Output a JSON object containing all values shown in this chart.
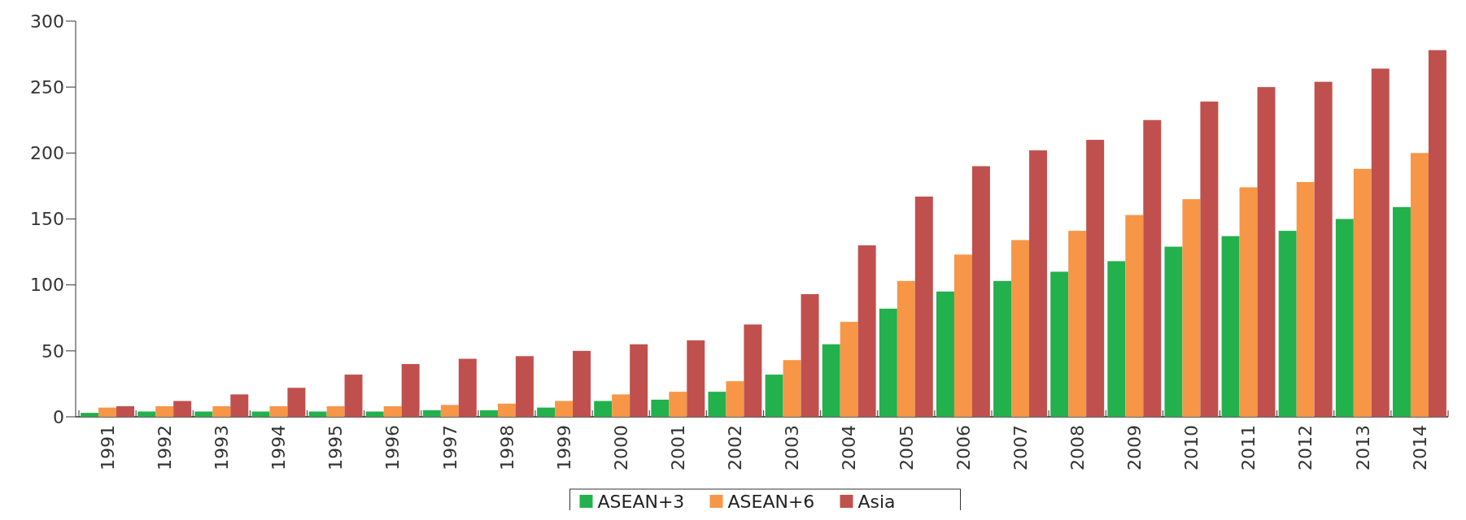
{
  "chart_data": {
    "type": "bar",
    "categories": [
      "1991",
      "1992",
      "1993",
      "1994",
      "1995",
      "1996",
      "1997",
      "1998",
      "1999",
      "2000",
      "2001",
      "2002",
      "2003",
      "2004",
      "2005",
      "2006",
      "2007",
      "2008",
      "2009",
      "2010",
      "2011",
      "2012",
      "2013",
      "2014"
    ],
    "series": [
      {
        "name": "ASEAN+3",
        "color": "#22b14c",
        "values": [
          3,
          4,
          4,
          4,
          4,
          4,
          5,
          5,
          7,
          12,
          13,
          19,
          32,
          55,
          82,
          95,
          103,
          110,
          118,
          129,
          137,
          141,
          150,
          159
        ]
      },
      {
        "name": "ASEAN+6",
        "color": "#f79646",
        "values": [
          7,
          8,
          8,
          8,
          8,
          8,
          9,
          10,
          12,
          17,
          19,
          27,
          43,
          72,
          103,
          123,
          134,
          141,
          153,
          165,
          174,
          178,
          188,
          200
        ]
      },
      {
        "name": "Asia",
        "color": "#c0504d",
        "values": [
          8,
          12,
          17,
          22,
          32,
          40,
          44,
          46,
          50,
          55,
          58,
          70,
          93,
          130,
          167,
          190,
          202,
          210,
          225,
          239,
          250,
          254,
          264,
          278
        ]
      }
    ],
    "ylim": [
      0,
      300
    ],
    "yticks": [
      0,
      50,
      100,
      150,
      200,
      250,
      300
    ],
    "legend": "bottom"
  }
}
